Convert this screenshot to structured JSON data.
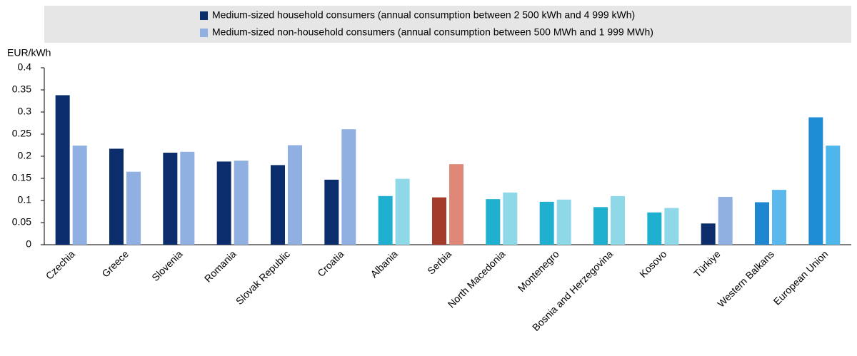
{
  "chart_data": {
    "type": "bar",
    "y_label": "EUR/kWh",
    "categories": [
      "Czechia",
      "Greece",
      "Slovenia",
      "Romania",
      "Slovak Republic",
      "Croatia",
      "Albania",
      "Serbia",
      "North Macedonia",
      "Montenegro",
      "Bosnia and Herzegovina",
      "Kosovo",
      "Türkiye",
      "Western Balkans",
      "European Union"
    ],
    "series": [
      {
        "name": "Medium-sized household consumers (annual consumption between 2 500 kWh and 4 999 kWh)",
        "color": "#0b2d6b",
        "values": [
          0.338,
          0.217,
          0.208,
          0.188,
          0.18,
          0.147,
          0.11,
          0.107,
          0.103,
          0.097,
          0.085,
          0.073,
          0.048,
          0.096,
          0.288
        ],
        "colors": [
          "#0b2d6b",
          "#0b2d6b",
          "#0b2d6b",
          "#0b2d6b",
          "#0b2d6b",
          "#0b2d6b",
          "#1fb0d0",
          "#a33a2a",
          "#1fb0d0",
          "#1fb0d0",
          "#1fb0d0",
          "#1fb0d0",
          "#0b2d6b",
          "#1f86d0",
          "#1f8dd6"
        ]
      },
      {
        "name": "Medium-sized non-household consumers (annual consumption between 500 MWh and 1 999 MWh)",
        "color": "#8fb0e0",
        "values": [
          0.224,
          0.165,
          0.21,
          0.19,
          0.225,
          0.261,
          0.149,
          0.182,
          0.118,
          0.102,
          0.11,
          0.083,
          0.108,
          0.124,
          0.224
        ],
        "colors": [
          "#8fb0e0",
          "#8fb0e0",
          "#8fb0e0",
          "#8fb0e0",
          "#8fb0e0",
          "#8fb0e0",
          "#8fd8e8",
          "#e08878",
          "#8fd8e8",
          "#8fd8e8",
          "#8fd8e8",
          "#8fd8e8",
          "#8fb0e0",
          "#5ab8ec",
          "#4fb6ec"
        ]
      }
    ],
    "ylim": [
      0,
      0.4
    ],
    "yticks": [
      0,
      0.05,
      0.1,
      0.15,
      0.2,
      0.25,
      0.3,
      0.35,
      0.4
    ],
    "grid": false
  }
}
